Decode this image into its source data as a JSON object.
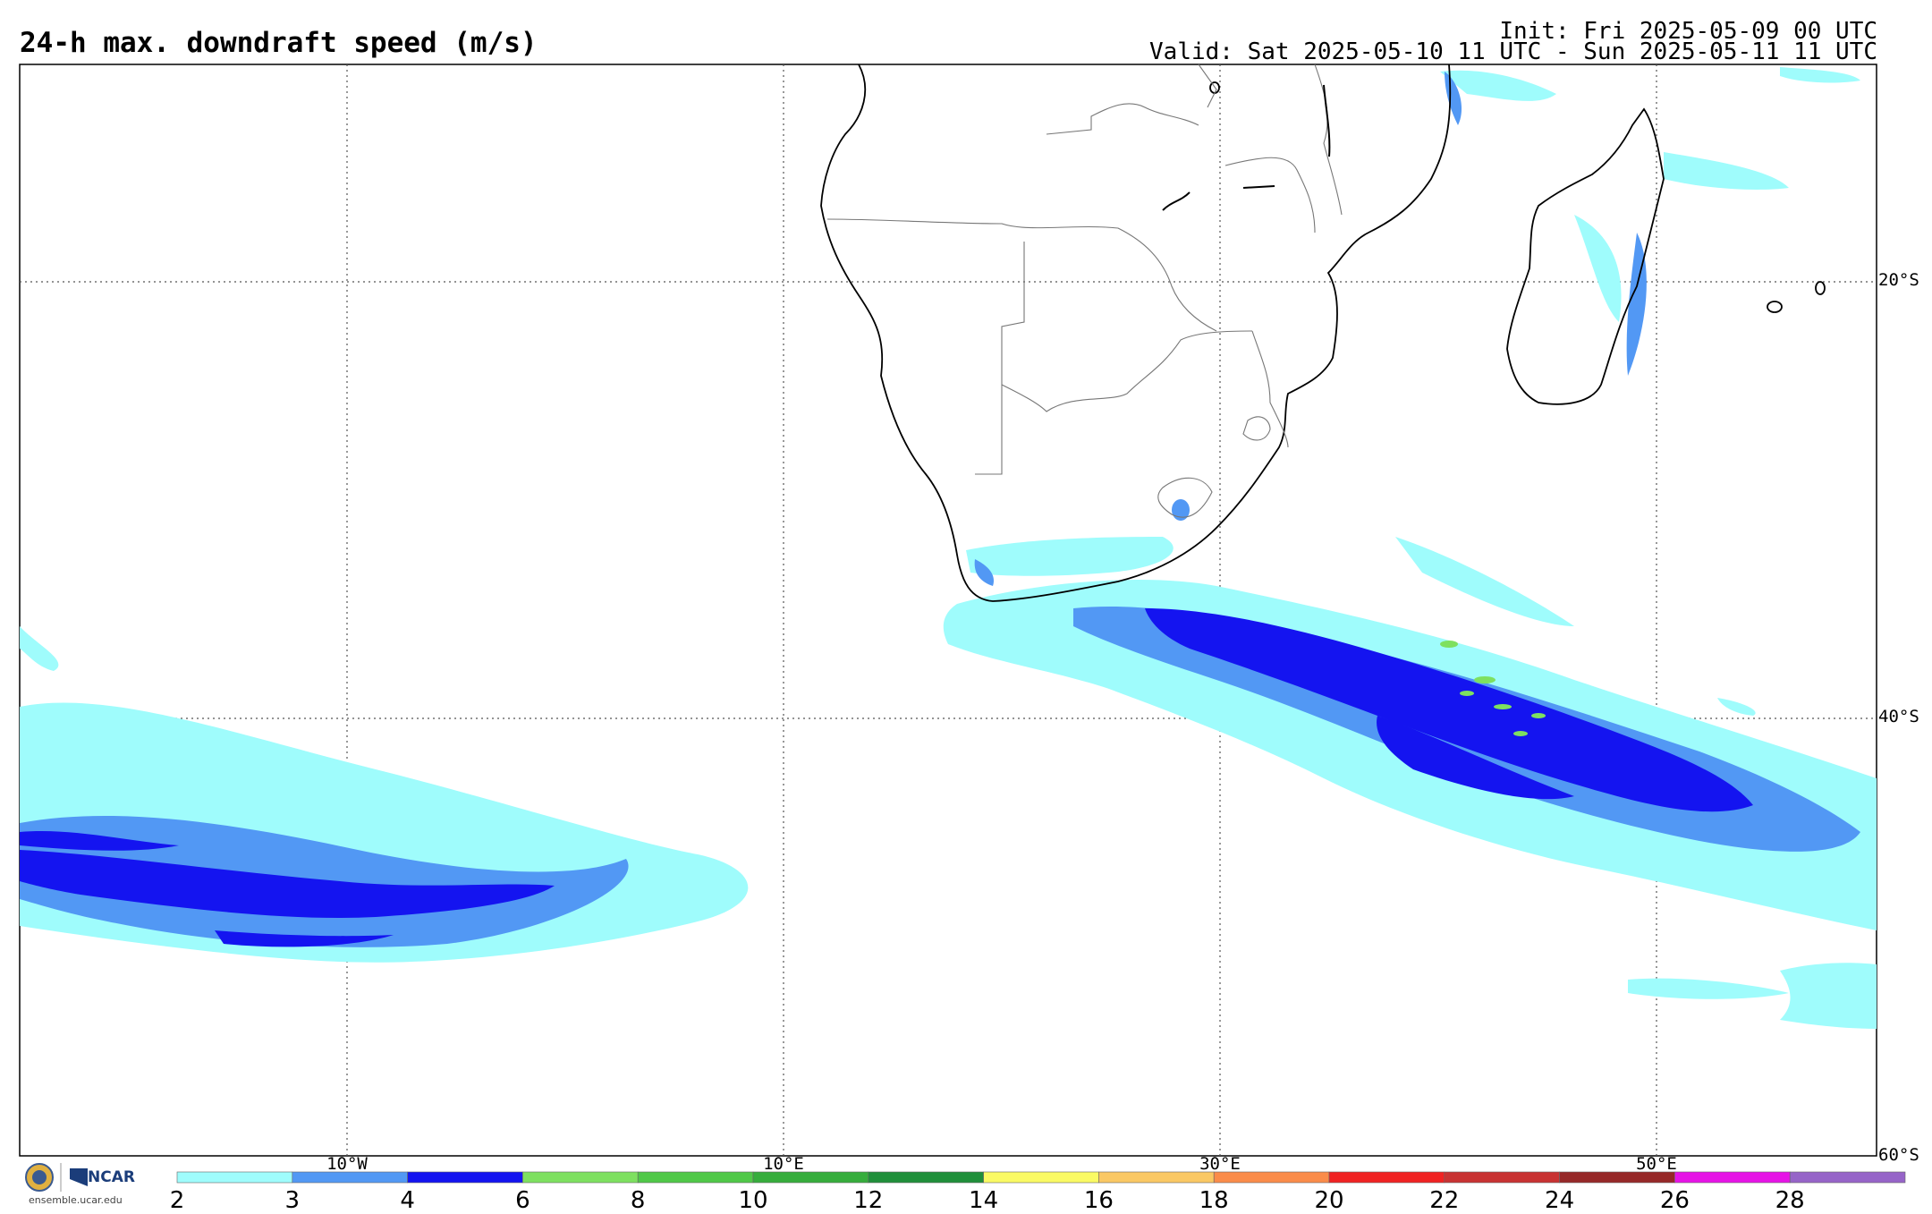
{
  "title": "24-h max. downdraft speed (m/s)",
  "init": "Init: Fri 2025-05-09 00 UTC",
  "valid": "Valid: Sat 2025-05-10 11 UTC - Sun 2025-05-11 11 UTC",
  "lon_labels": [
    "10°W",
    "10°E",
    "30°E",
    "50°E"
  ],
  "lat_labels": [
    "20°S",
    "40°S",
    "60°S"
  ],
  "colorbar": {
    "ticks": [
      "2",
      "3",
      "4",
      "6",
      "8",
      "10",
      "12",
      "14",
      "16",
      "18",
      "20",
      "22",
      "24",
      "26",
      "28"
    ],
    "colors": [
      "#9ffcfc",
      "#5298f4",
      "#1414f0",
      "#7ee060",
      "#50c848",
      "#36ad3c",
      "#1f8f3a",
      "#fafa64",
      "#fac864",
      "#fa8c4a",
      "#f02222",
      "#c83232",
      "#962828",
      "#e614e6",
      "#9664c8"
    ]
  },
  "logo": {
    "org": "NCAR",
    "url_text": "ensemble.ucar.edu"
  },
  "map": {
    "region": "Southern Africa / South Atlantic / SW Indian Ocean",
    "lon_range": [
      -25,
      60
    ],
    "lat_range": [
      -60,
      -10
    ],
    "gridlines": "dotted"
  }
}
